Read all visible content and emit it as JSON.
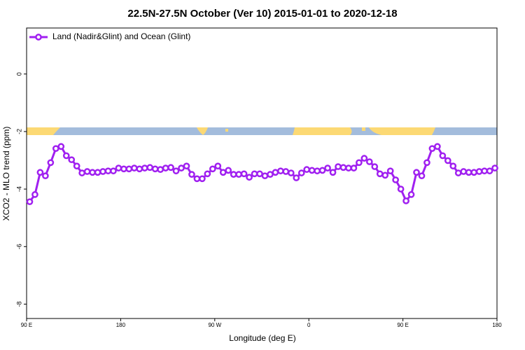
{
  "chart_data": {
    "type": "line",
    "title": "22.5N-27.5N October (Ver 10)   2015-01-01 to 2020-12-18",
    "x_label": "Longitude (deg E)",
    "y_label": "XCO2 - MLO trend (ppm)",
    "x": [
      93,
      98,
      103,
      108,
      113,
      118,
      123,
      128,
      133,
      138,
      143,
      148,
      153,
      158,
      163,
      168,
      173,
      178,
      183,
      188,
      193,
      198,
      203,
      208,
      213,
      218,
      223,
      228,
      233,
      238,
      243,
      248,
      253,
      258,
      263,
      268,
      273,
      278,
      283,
      288,
      293,
      298,
      303,
      308,
      313,
      318,
      323,
      328,
      333,
      338,
      343,
      348,
      353,
      358,
      363,
      368,
      373,
      378,
      383,
      388,
      393,
      398,
      403,
      408,
      413,
      418,
      423,
      428,
      433,
      438,
      443,
      448,
      453,
      458,
      463,
      468,
      473,
      478,
      483,
      488,
      493,
      498,
      503,
      508,
      513,
      518,
      523,
      528,
      533,
      538
    ],
    "series": [
      {
        "name": "Land (Nadir&Glint) and Ocean (Glint)",
        "color": "#a020f0",
        "values": [
          -4.44,
          -4.19,
          -3.42,
          -3.54,
          -3.08,
          -2.59,
          -2.52,
          -2.84,
          -2.98,
          -3.2,
          -3.44,
          -3.39,
          -3.42,
          -3.42,
          -3.39,
          -3.37,
          -3.37,
          -3.27,
          -3.3,
          -3.3,
          -3.27,
          -3.3,
          -3.27,
          -3.25,
          -3.3,
          -3.32,
          -3.27,
          -3.25,
          -3.37,
          -3.27,
          -3.2,
          -3.49,
          -3.64,
          -3.64,
          -3.47,
          -3.3,
          -3.2,
          -3.42,
          -3.35,
          -3.49,
          -3.49,
          -3.47,
          -3.59,
          -3.47,
          -3.47,
          -3.54,
          -3.49,
          -3.42,
          -3.37,
          -3.39,
          -3.44,
          -3.61,
          -3.44,
          -3.32,
          -3.35,
          -3.37,
          -3.35,
          -3.27,
          -3.42,
          -3.22,
          -3.25,
          -3.27,
          -3.27,
          -3.08,
          -2.93,
          -3.05,
          -3.22,
          -3.47,
          -3.52,
          -3.37,
          -3.68,
          -4.0,
          -4.41,
          -4.19,
          -3.42,
          -3.54,
          -3.08,
          -2.59,
          -2.52,
          -2.84,
          -3.01,
          -3.2,
          -3.44,
          -3.39,
          -3.42,
          -3.42,
          -3.39,
          -3.37,
          -3.37,
          -3.27
        ]
      }
    ],
    "xlim": [
      90,
      540
    ],
    "xticks": [
      {
        "value": 90,
        "label": "90 E"
      },
      180,
      {
        "value": 270,
        "label": "90 W"
      },
      {
        "value": 360,
        "label": "0"
      },
      {
        "value": 450,
        "label": "90 E"
      },
      {
        "value": 540,
        "label": "180"
      }
    ],
    "ylim": [
      -8.5,
      1.6
    ],
    "yticks": [
      0,
      -2,
      -4,
      -6,
      -8
    ],
    "legend": "top-left"
  }
}
